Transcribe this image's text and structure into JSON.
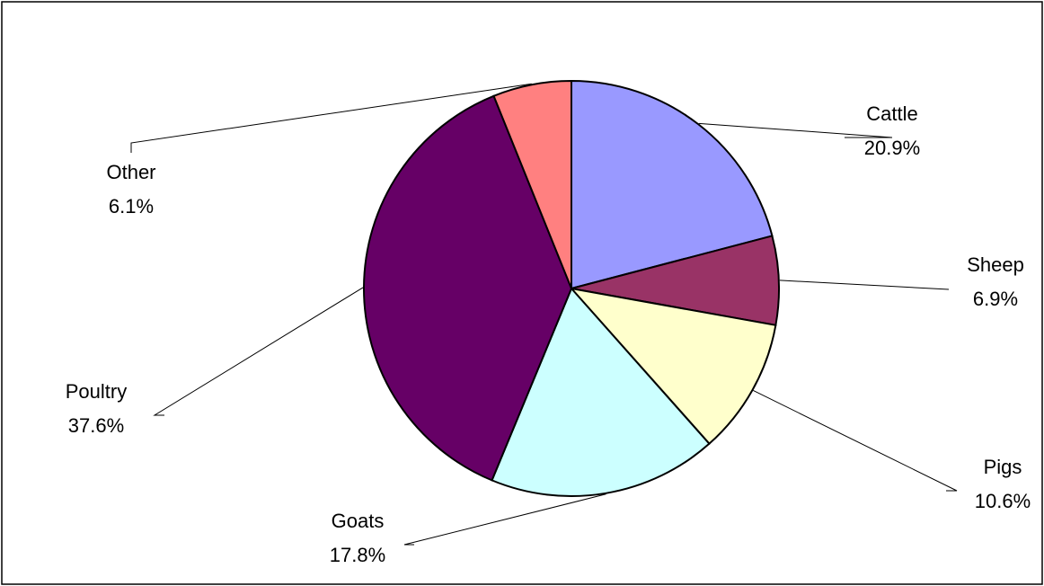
{
  "chart_data": {
    "type": "pie",
    "title": "",
    "slices": [
      {
        "label": "Cattle",
        "value": 20.9,
        "value_label": "20.9%",
        "color": "#9999FF"
      },
      {
        "label": "Sheep",
        "value": 6.9,
        "value_label": "6.9%",
        "color": "#993366"
      },
      {
        "label": "Pigs",
        "value": 10.6,
        "value_label": "10.6%",
        "color": "#FFFFCC"
      },
      {
        "label": "Goats",
        "value": 17.8,
        "value_label": "17.8%",
        "color": "#CCFFFF"
      },
      {
        "label": "Poultry",
        "value": 37.6,
        "value_label": "37.6%",
        "color": "#660066"
      },
      {
        "label": "Other",
        "value": 6.1,
        "value_label": "6.1%",
        "color": "#FF8080"
      }
    ],
    "start": "top",
    "direction": "clockwise",
    "legend": "none",
    "data_labels": "outside-with-leader-lines"
  }
}
